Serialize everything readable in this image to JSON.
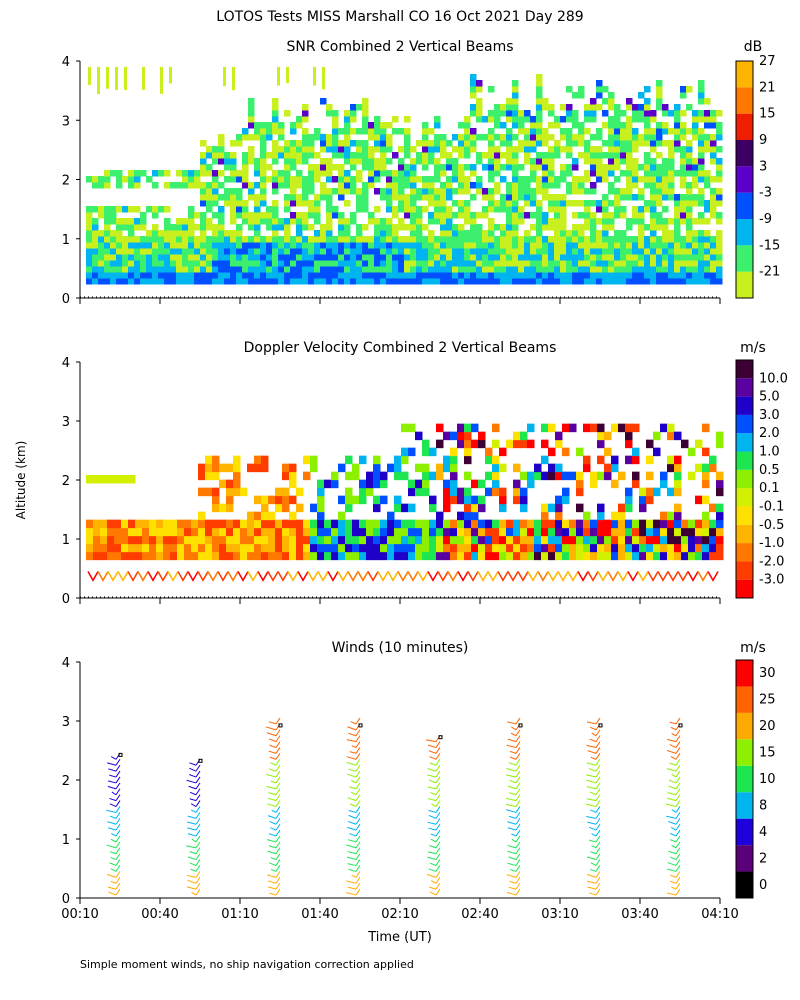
{
  "title": "LOTOS Tests MISS Marshall CO  16 Oct 2021 Day 289",
  "footnote": "Simple moment winds, no ship navigation correction applied",
  "colors": {
    "snr": [
      "#c8f01e",
      "#3cf06e",
      "#00b4f0",
      "#0050ff",
      "#5a00c8",
      "#3c0064",
      "#f01e00",
      "#ff7800",
      "#ffb400"
    ],
    "vel": [
      "#ff0000",
      "#ff3c00",
      "#ff7800",
      "#ffb400",
      "#ffe100",
      "#d2f000",
      "#8cf000",
      "#1ee650",
      "#00b4f0",
      "#0050ff",
      "#1e00c8",
      "#5a00a0",
      "#3c0032"
    ],
    "wind": [
      "#000000",
      "#5a0078",
      "#1e00dc",
      "#00b4f0",
      "#1ee650",
      "#8cf000",
      "#ffaa00",
      "#ff6400",
      "#ff0000"
    ]
  },
  "chart_data": [
    {
      "type": "heatmap",
      "title": "SNR Combined 2 Vertical Beams",
      "units": "dB",
      "xlabel": "",
      "ylabel": "Altitude (km)",
      "ylim": [
        0,
        4
      ],
      "yticks": [
        "0",
        "1",
        "2",
        "3",
        "4"
      ],
      "colorbar_labels": [
        "-21",
        "-15",
        "-9",
        "-3",
        "3",
        "9",
        "15",
        "21",
        "27"
      ],
      "grid": false
    },
    {
      "type": "heatmap",
      "title": "Doppler Velocity Combined 2 Vertical Beams",
      "units": "m/s",
      "xlabel": "",
      "ylabel": "Altitude (km)",
      "ylim": [
        0,
        4
      ],
      "yticks": [
        "0",
        "1",
        "2",
        "3",
        "4"
      ],
      "colorbar_labels": [
        "-3.0",
        "-2.0",
        "-1.0",
        "-0.5",
        "-0.1",
        "0.1",
        "0.5",
        "1.0",
        "2.0",
        "3.0",
        "5.0",
        "10.0"
      ],
      "grid": false
    },
    {
      "type": "scatter",
      "title": "Winds (10 minutes)",
      "units": "m/s",
      "xlabel": "Time (UT)",
      "ylabel": "Altitude (km)",
      "ylim": [
        0,
        4
      ],
      "yticks": [
        "0",
        "1",
        "2",
        "3",
        "4"
      ],
      "xticks": [
        "00:10",
        "00:40",
        "01:10",
        "01:40",
        "02:10",
        "02:40",
        "03:10",
        "03:40",
        "04:10"
      ],
      "colorbar_labels": [
        "0",
        "2",
        "4",
        "8",
        "10",
        "15",
        "20",
        "25",
        "30"
      ],
      "wind_profile_times": [
        "00:25",
        "00:55",
        "01:25",
        "01:55",
        "02:25",
        "02:55",
        "03:25",
        "03:55"
      ],
      "wind_profile_tops_km": [
        2.4,
        2.3,
        3.0,
        3.0,
        2.7,
        3.0,
        3.0,
        3.0
      ]
    }
  ]
}
